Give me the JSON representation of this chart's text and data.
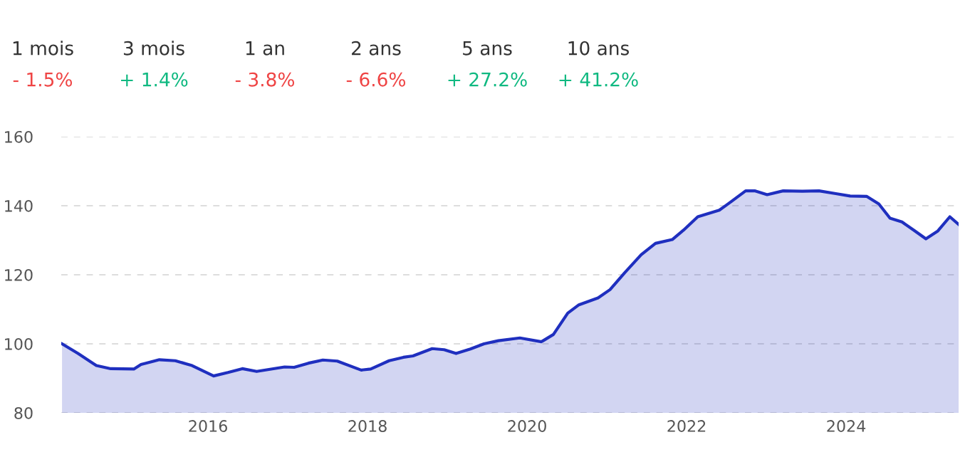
{
  "chart_data": {
    "type": "area",
    "annotations": [
      "1 mois",
      "- 1.5%",
      "3 mois",
      "+ 1.4%",
      "1 an",
      "- 3.8%",
      "2 ans",
      "- 6.6%",
      "5 ans",
      "+ 27.2%",
      "10 ans",
      "+ 41.2%"
    ],
    "x": [
      2014.17,
      2014.37,
      2014.6,
      2014.78,
      2015.07,
      2015.16,
      2015.39,
      2015.59,
      2015.8,
      2016.07,
      2016.25,
      2016.43,
      2016.61,
      2016.96,
      2017.08,
      2017.26,
      2017.44,
      2017.62,
      2017.92,
      2018.04,
      2018.27,
      2018.45,
      2018.57,
      2018.81,
      2018.96,
      2019.11,
      2019.29,
      2019.46,
      2019.64,
      2019.91,
      2020.18,
      2020.33,
      2020.51,
      2020.65,
      2020.89,
      2021.04,
      2021.22,
      2021.43,
      2021.61,
      2021.82,
      2021.96,
      2022.14,
      2022.41,
      2022.56,
      2022.74,
      2022.86,
      2023.01,
      2023.21,
      2023.45,
      2023.66,
      2023.87,
      2024.05,
      2024.26,
      2024.41,
      2024.55,
      2024.7,
      2024.85,
      2025.0,
      2025.15,
      2025.3,
      2025.41
    ],
    "series": [
      {
        "color": "#1f2fbf",
        "values": [
          100,
          97.2,
          93.7,
          92.8,
          92.7,
          94.0,
          95.4,
          95.1,
          93.7,
          90.7,
          91.7,
          92.8,
          92.0,
          93.3,
          93.2,
          94.4,
          95.3,
          95.0,
          92.4,
          92.7,
          95.1,
          96.1,
          96.5,
          98.6,
          98.3,
          97.2,
          98.5,
          100.0,
          100.9,
          101.7,
          100.6,
          102.7,
          108.9,
          111.3,
          113.3,
          115.7,
          120.5,
          125.8,
          129.1,
          130.2,
          132.9,
          136.8,
          138.7,
          141.2,
          144.3,
          144.3,
          143.2,
          144.3,
          144.2,
          144.3,
          143.5,
          142.8,
          142.7,
          140.5,
          136.4,
          135.3,
          132.9,
          130.4,
          132.7,
          136.8,
          134.6
        ]
      }
    ],
    "xlim": [
      2014.16,
      2025.41
    ],
    "xticks": [
      2016,
      2018,
      2020,
      2022,
      2024
    ],
    "ylim": [
      80,
      160
    ],
    "yticks": [
      80,
      100,
      120,
      140,
      160
    ],
    "grid": "y",
    "line_style": "solid",
    "legend": false
  }
}
